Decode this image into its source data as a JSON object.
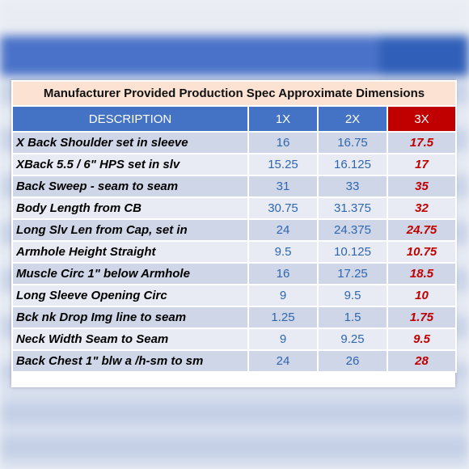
{
  "title": "Manufacturer Provided Production Spec Approximate Dimensions",
  "headers": [
    "DESCRIPTION",
    "1X",
    "2X",
    "3X"
  ],
  "colors": {
    "header_blue": "#4472c4",
    "highlight_red": "#c00000",
    "title_bg": "#fbe2d3"
  },
  "rows": [
    {
      "desc": "X Back Shoulder set in sleeve",
      "v1": "16",
      "v2": "16.75",
      "v3": "17.5"
    },
    {
      "desc": "XBack 5.5 / 6\" HPS set in slv",
      "v1": "15.25",
      "v2": "16.125",
      "v3": "17"
    },
    {
      "desc": "Back Sweep - seam to seam",
      "v1": "31",
      "v2": "33",
      "v3": "35"
    },
    {
      "desc": "Body Length from CB",
      "v1": "30.75",
      "v2": "31.375",
      "v3": "32"
    },
    {
      "desc": "Long Slv Len from Cap, set in",
      "v1": "24",
      "v2": "24.375",
      "v3": "24.75"
    },
    {
      "desc": "Armhole Height Straight",
      "v1": "9.5",
      "v2": "10.125",
      "v3": "10.75"
    },
    {
      "desc": "Muscle Circ 1\" below Armhole",
      "v1": "16",
      "v2": "17.25",
      "v3": "18.5"
    },
    {
      "desc": "Long Sleeve Opening Circ",
      "v1": "9",
      "v2": "9.5",
      "v3": "10"
    },
    {
      "desc": "Bck nk Drop Img line to seam",
      "v1": "1.25",
      "v2": "1.5",
      "v3": "1.75"
    },
    {
      "desc": "Neck Width Seam to Seam",
      "v1": "9",
      "v2": "9.25",
      "v3": "9.5"
    },
    {
      "desc": "Back Chest 1\" blw a /h-sm to sm",
      "v1": "24",
      "v2": "26",
      "v3": "28"
    }
  ]
}
